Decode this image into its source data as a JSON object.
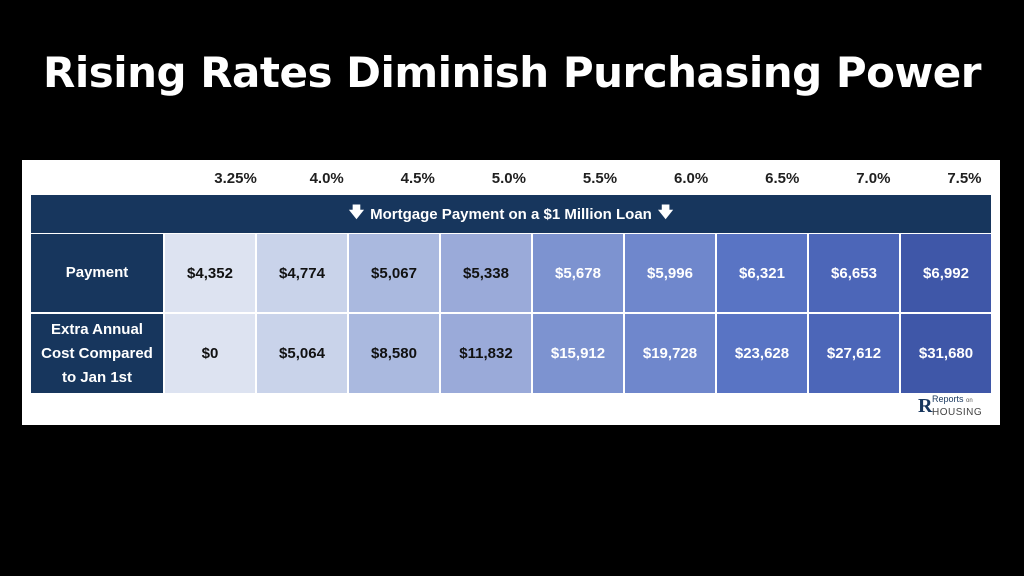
{
  "title": "Rising Rates Diminish Purchasing Power",
  "rates": [
    "3.25%",
    "4.0%",
    "4.5%",
    "5.0%",
    "5.5%",
    "6.0%",
    "6.5%",
    "7.0%",
    "7.5%"
  ],
  "banner": {
    "text": "Mortgage Payment on a $1 Million Loan",
    "icon": "arrow-down-icon"
  },
  "rows": [
    {
      "label": "Payment",
      "values": [
        "$4,352",
        "$4,774",
        "$5,067",
        "$5,338",
        "$5,678",
        "$5,996",
        "$6,321",
        "$6,653",
        "$6,992"
      ]
    },
    {
      "label": "Extra Annual Cost Compared to Jan 1st",
      "values": [
        "$0",
        "$5,064",
        "$8,580",
        "$11,832",
        "$15,912",
        "$19,728",
        "$23,628",
        "$27,612",
        "$31,680"
      ]
    }
  ],
  "column_colors": [
    "#dde3f1",
    "#c9d3ea",
    "#aab9df",
    "#9aaad9",
    "#7d93d0",
    "#6f87cc",
    "#5974c4",
    "#4c66b8",
    "#3f57a8"
  ],
  "column_text_colors": [
    "#111111",
    "#111111",
    "#111111",
    "#111111",
    "#ffffff",
    "#ffffff",
    "#ffffff",
    "#ffffff",
    "#ffffff"
  ],
  "logo": {
    "top": "Reports",
    "small": "on",
    "bottom": "HOUSING"
  }
}
